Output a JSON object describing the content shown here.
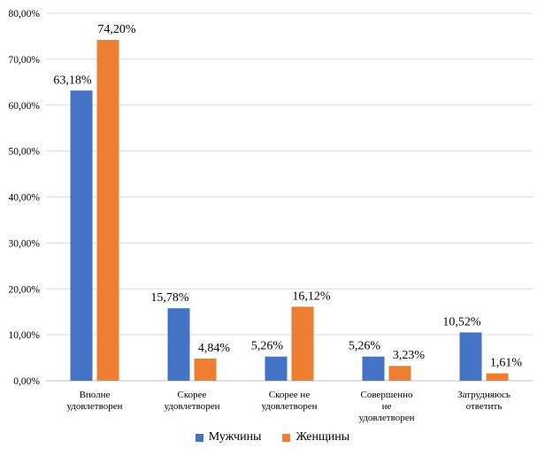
{
  "chart_data": {
    "type": "bar",
    "categories": [
      [
        "Вполне",
        "удовлетворен"
      ],
      [
        "Скорее",
        "удовлетворен"
      ],
      [
        "Скорее не",
        "удовлетворен"
      ],
      [
        "Совершенно",
        "не",
        "удовлетворен"
      ],
      [
        "Затрудняюсь",
        "ответить"
      ]
    ],
    "series": [
      {
        "name": "Мужчины",
        "color": "#4472C4",
        "values": [
          63.18,
          15.78,
          5.26,
          5.26,
          10.52
        ],
        "labels": [
          "63,18%",
          "15,78%",
          "5,26%",
          "5,26%",
          "10,52%"
        ]
      },
      {
        "name": "Женщины",
        "color": "#ED7D31",
        "values": [
          74.2,
          4.84,
          16.12,
          3.23,
          1.61
        ],
        "labels": [
          "74,20%",
          "4,84%",
          "16,12%",
          "3,23%",
          "1,61%"
        ]
      }
    ],
    "yticks": [
      0,
      10,
      20,
      30,
      40,
      50,
      60,
      70,
      80
    ],
    "ytick_labels": [
      "0,00%",
      "10,00%",
      "20,00%",
      "30,00%",
      "40,00%",
      "50,00%",
      "60,00%",
      "70,00%",
      "80,00%"
    ],
    "ylim": [
      0,
      80
    ],
    "grid": true,
    "legend_position": "bottom",
    "title": "",
    "xlabel": "",
    "ylabel": ""
  }
}
